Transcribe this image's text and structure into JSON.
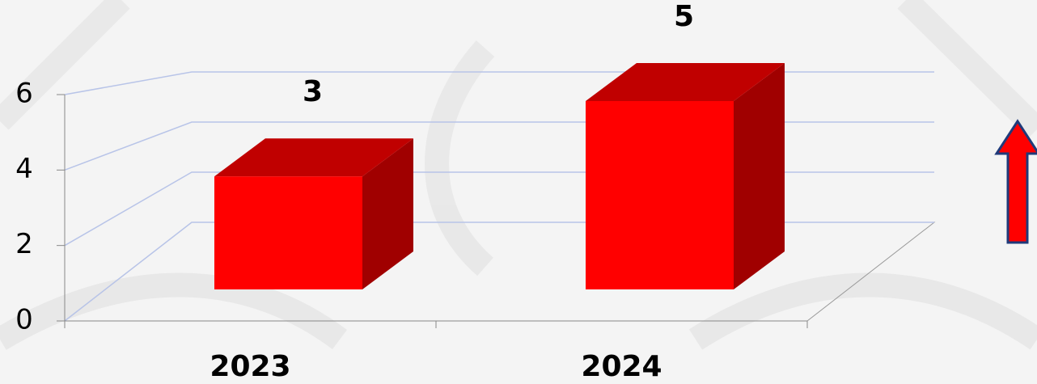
{
  "chart_data": {
    "type": "bar3d",
    "categories": [
      "2023",
      "2024"
    ],
    "values": [
      3,
      5
    ],
    "color": "#ff0000",
    "ylim": [
      0,
      6
    ],
    "yticks": [
      0,
      2,
      4,
      6
    ],
    "grid": true
  }
}
